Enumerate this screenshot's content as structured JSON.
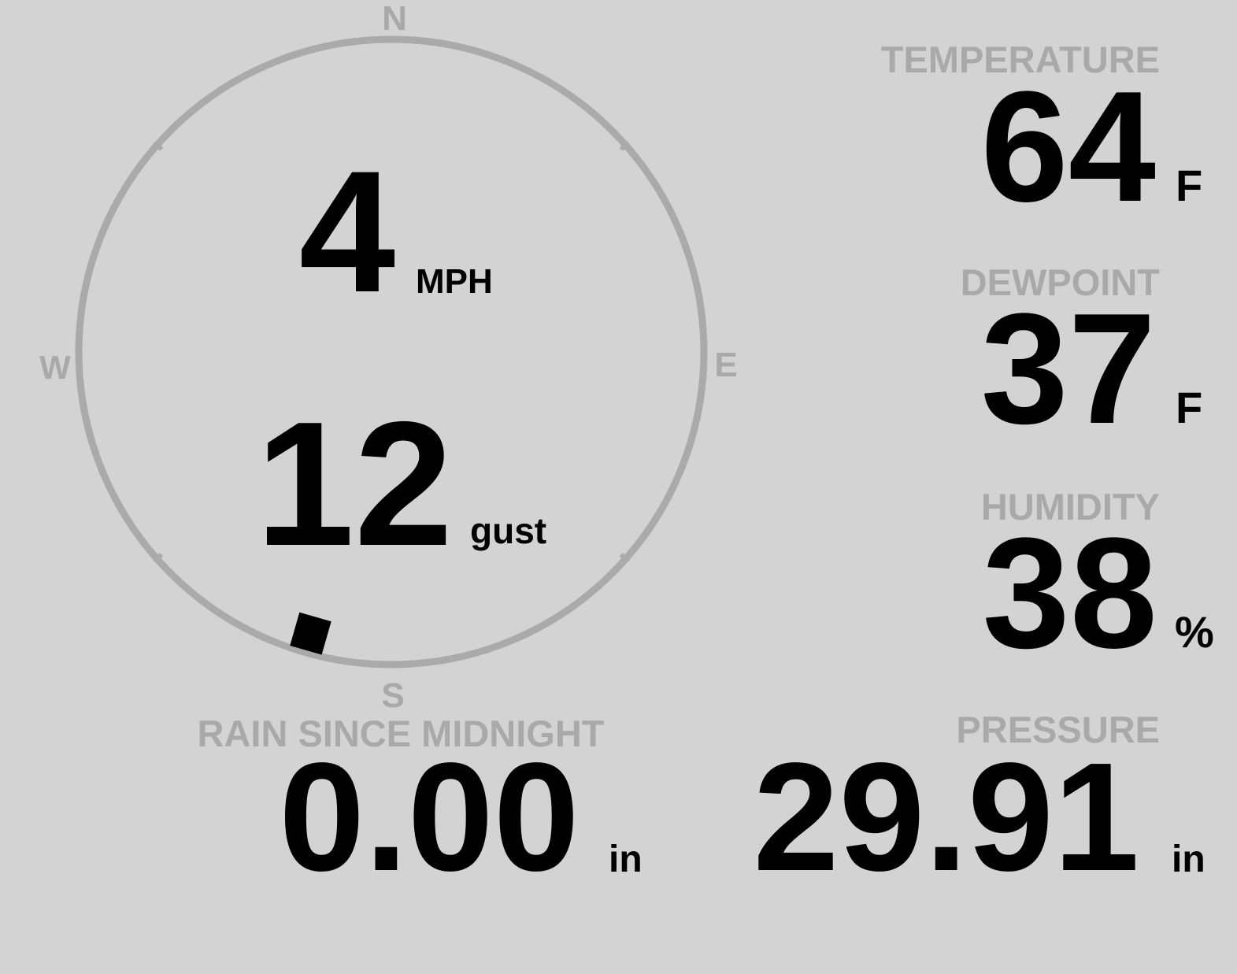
{
  "compass": {
    "north": "N",
    "east": "E",
    "south": "S",
    "west": "W"
  },
  "wind": {
    "speed": 4,
    "speed_unit": "MPH",
    "gust": 12,
    "gust_unit": "gust",
    "direction": 196
  },
  "temperature": {
    "label": "TEMPERATURE",
    "value": 64,
    "unit": "F"
  },
  "dewpoint": {
    "label": "DEWPOINT",
    "value": 37,
    "unit": "F"
  },
  "humidity": {
    "label": "HUMIDITY",
    "value": 38,
    "unit": "%"
  },
  "rain": {
    "label": "RAIN SINCE MIDNIGHT",
    "value": "0.00",
    "unit": "in"
  },
  "pressure": {
    "label": "PRESSURE",
    "value": "29.91",
    "unit": "in"
  }
}
